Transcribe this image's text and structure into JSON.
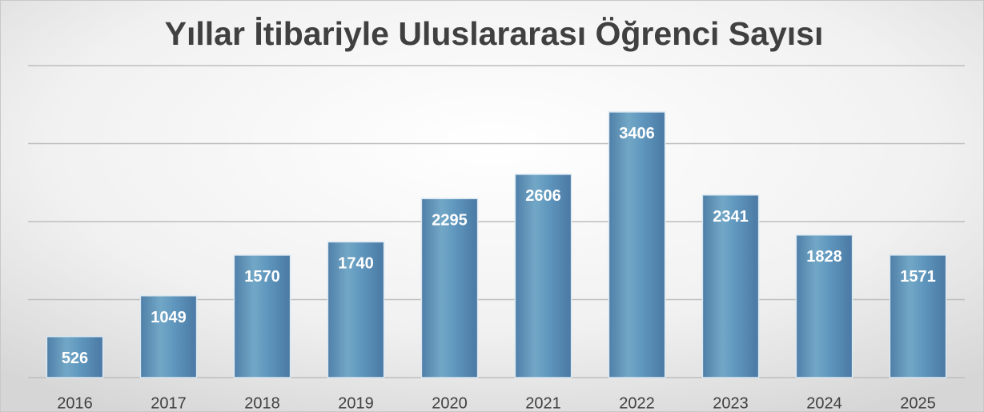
{
  "chart_data": {
    "type": "bar",
    "title": "Yıllar İtibariyle Uluslararası Öğrenci Sayısı",
    "categories": [
      "2016",
      "2017",
      "2018",
      "2019",
      "2020",
      "2021",
      "2022",
      "2023",
      "2024",
      "2025"
    ],
    "values": [
      526,
      1049,
      1570,
      1740,
      2295,
      2606,
      3406,
      2341,
      1828,
      1571
    ],
    "color": "#5f93b9",
    "ylim": [
      0,
      4000
    ],
    "yticks": [
      0,
      1000,
      2000,
      3000,
      4000
    ],
    "grid": true
  }
}
